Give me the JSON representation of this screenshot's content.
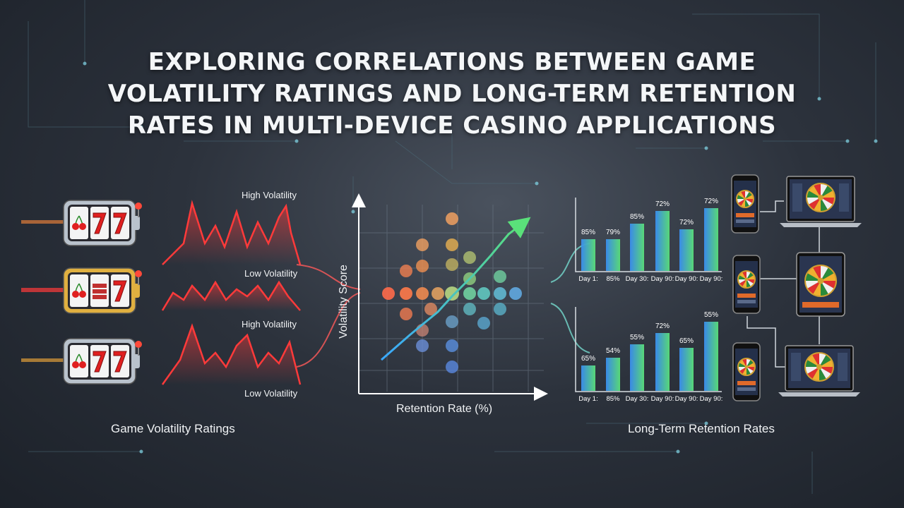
{
  "title": {
    "line1": "EXPLORING CORRELATIONS BETWEEN GAME",
    "line2": "VOLATILITY RATINGS AND LONG-TERM RETENTION",
    "line3": "RATES IN MULTI-DEVICE CASINO APPLICATIONS"
  },
  "left": {
    "section_label": "Game Volatility Ratings",
    "labels": [
      "High Volatility",
      "Low Volatility",
      "High Volatility",
      "Low Volatility"
    ],
    "slots": [
      {
        "symbols": [
          "cherry-icon",
          "seven-icon",
          "seven-icon"
        ],
        "frame_color": "#b9c2cc"
      },
      {
        "symbols": [
          "cherry-icon",
          "bar-icon",
          "seven-icon"
        ],
        "frame_color": "#e0b040"
      },
      {
        "symbols": [
          "cherry-icon",
          "seven-icon",
          "seven-icon"
        ],
        "frame_color": "#b9c2cc"
      }
    ]
  },
  "scatter": {
    "xlabel": "Retention Rate (%)",
    "ylabel": "Volatility Score"
  },
  "right": {
    "section_label": "Long-Term Retention Rates",
    "top_chart": {
      "values": [
        "85%",
        "79%",
        "85%",
        "72%",
        "72%",
        "72%"
      ],
      "heights": [
        45,
        45,
        67,
        85,
        59,
        89
      ],
      "categories": [
        "Day 1:",
        "85%",
        "Day 30:",
        "Day 90:",
        "Day 90:",
        "Day 90:"
      ]
    },
    "bottom_chart": {
      "values": [
        "65%",
        "54%",
        "55%",
        "72%",
        "65%",
        "55%"
      ],
      "heights": [
        36,
        47,
        66,
        82,
        61,
        98
      ],
      "categories": [
        "Day 1:",
        "85%",
        "Day 30:",
        "Day 90:",
        "Day 90:",
        "Day 90:"
      ]
    }
  },
  "colors": {
    "red_line": "#ff3a3a",
    "bar_start": "#3a8ef0",
    "bar_end": "#5ae07a",
    "trend": "#5ae07a"
  }
}
